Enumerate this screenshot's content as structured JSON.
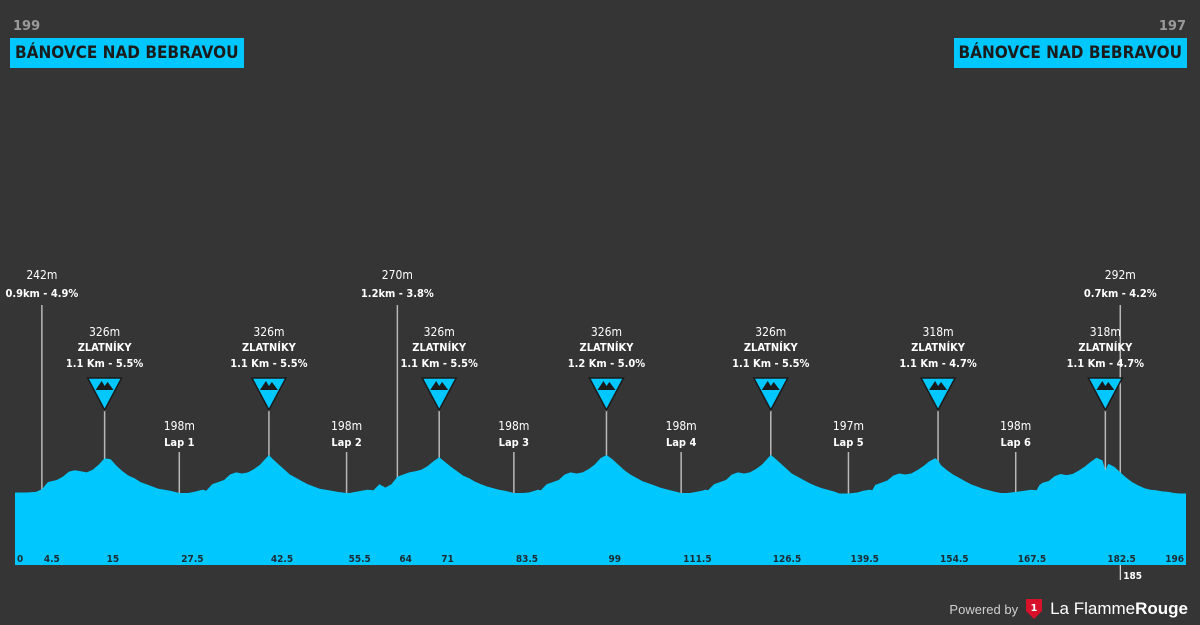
{
  "start": {
    "altitude": "199",
    "town": "BÁNOVCE NAD BEBRAVOU"
  },
  "finish": {
    "altitude": "197",
    "town": "BÁNOVCE NAD BEBRAVOU"
  },
  "footer": {
    "powered_by": "Powered by",
    "brand_part1": "La Flamme",
    "brand_part2": "Rouge"
  },
  "colors": {
    "profile_fill": "#00c8ff",
    "background": "#353535",
    "kom_badge": "#00c8ff",
    "line": "#b8b8b8",
    "brand_red": "#d8112a"
  },
  "chart_data": {
    "type": "area",
    "title": "",
    "xlabel": "",
    "ylabel": "",
    "x_unit": "km",
    "y_unit": "m",
    "xlim": [
      0,
      196
    ],
    "ylim": [
      0,
      330
    ],
    "x_ticks": [
      {
        "value": 0,
        "label": "0"
      },
      {
        "value": 4.5,
        "label": "4.5"
      },
      {
        "value": 15,
        "label": "15"
      },
      {
        "value": 27.5,
        "label": "27.5"
      },
      {
        "value": 42.5,
        "label": "42.5"
      },
      {
        "value": 55.5,
        "label": "55.5"
      },
      {
        "value": 64,
        "label": "64"
      },
      {
        "value": 71,
        "label": "71"
      },
      {
        "value": 83.5,
        "label": "83.5"
      },
      {
        "value": 99,
        "label": "99"
      },
      {
        "value": 111.5,
        "label": "111.5"
      },
      {
        "value": 126.5,
        "label": "126.5"
      },
      {
        "value": 139.5,
        "label": "139.5"
      },
      {
        "value": 154.5,
        "label": "154.5"
      },
      {
        "value": 167.5,
        "label": "167.5"
      },
      {
        "value": 182.5,
        "label": "182.5"
      },
      {
        "value": 185,
        "label": "185"
      },
      {
        "value": 196,
        "label": "196"
      }
    ],
    "profile": {
      "x": [
        0,
        2,
        3.5,
        4.5,
        5.5,
        7,
        8,
        9,
        10,
        11,
        12,
        13,
        14,
        15,
        16,
        17,
        18,
        19,
        20,
        21,
        22,
        23,
        24,
        25,
        26,
        27.5,
        29,
        30,
        31,
        31.5,
        32,
        33,
        34,
        35,
        36,
        37,
        38,
        39,
        40,
        41,
        42,
        42.5,
        43,
        44,
        45,
        46,
        47,
        48,
        49,
        50,
        51,
        52,
        53,
        54,
        55.5,
        56,
        57,
        58,
        59,
        60,
        61,
        62,
        63,
        64,
        65,
        66,
        67,
        68,
        69,
        70,
        71,
        72,
        73,
        74,
        75,
        76,
        77,
        78,
        79,
        80,
        81,
        82,
        83.5,
        85,
        86,
        87,
        87.5,
        88,
        89,
        90,
        91,
        92,
        93,
        94,
        95,
        96,
        97,
        98,
        99,
        100,
        101,
        102,
        103,
        104,
        105,
        106,
        107,
        108,
        109,
        110,
        111.5,
        113,
        114,
        115,
        115.5,
        116,
        117,
        118,
        119,
        120,
        121,
        122,
        123,
        124,
        125,
        126,
        126.5,
        127,
        128,
        129,
        130,
        131,
        132,
        133,
        134,
        135,
        136,
        137,
        138,
        139.5,
        141,
        142,
        143,
        143.5,
        144,
        145,
        146,
        147,
        148,
        149,
        150,
        151,
        152,
        153,
        154,
        154.5,
        155,
        156,
        157,
        158,
        159,
        160,
        161,
        162,
        163,
        164,
        165,
        166,
        167.5,
        169,
        170,
        171,
        171.5,
        172,
        173,
        174,
        175,
        176,
        177,
        178,
        179,
        180,
        181,
        182,
        182.5,
        183,
        184,
        185,
        186,
        187,
        188,
        189,
        190,
        191,
        192,
        193,
        194,
        195,
        196
      ],
      "y": [
        199,
        199,
        200,
        205,
        218,
        222,
        228,
        237,
        240,
        238,
        236,
        241,
        250,
        262,
        260,
        248,
        238,
        230,
        225,
        218,
        214,
        210,
        206,
        204,
        202,
        198,
        198,
        200,
        203,
        204,
        202,
        214,
        218,
        222,
        232,
        236,
        234,
        236,
        242,
        250,
        262,
        268,
        262,
        252,
        242,
        232,
        226,
        220,
        214,
        210,
        206,
        204,
        202,
        200,
        198,
        198,
        200,
        202,
        204,
        203,
        214,
        208,
        214,
        228,
        232,
        236,
        238,
        241,
        247,
        256,
        264,
        255,
        246,
        238,
        230,
        225,
        219,
        214,
        210,
        207,
        204,
        202,
        198,
        198,
        199,
        202,
        204,
        203,
        214,
        218,
        222,
        232,
        236,
        234,
        236,
        242,
        250,
        262,
        268,
        260,
        250,
        240,
        232,
        226,
        220,
        216,
        212,
        208,
        205,
        202,
        198,
        198,
        200,
        202,
        204,
        203,
        214,
        218,
        222,
        232,
        236,
        234,
        236,
        242,
        250,
        262,
        268,
        264,
        254,
        244,
        234,
        228,
        222,
        216,
        211,
        207,
        204,
        201,
        197,
        197,
        199,
        202,
        204,
        203,
        213,
        217,
        221,
        230,
        234,
        232,
        234,
        240,
        247,
        256,
        262,
        258,
        249,
        240,
        232,
        226,
        220,
        214,
        210,
        206,
        203,
        200,
        198,
        198,
        200,
        202,
        204,
        203,
        213,
        217,
        220,
        229,
        233,
        231,
        233,
        239,
        246,
        255,
        263,
        258,
        240,
        252,
        246,
        236,
        226,
        218,
        212,
        207,
        204,
        203,
        201,
        200,
        198,
        197,
        197
      ]
    },
    "annotations": [
      {
        "kind": "climb",
        "km": 4.5,
        "altitude": "242m",
        "detail": "0.9km - 4.9%",
        "level": "high"
      },
      {
        "kind": "kom",
        "km": 15,
        "altitude": "326m",
        "name": "ZLATNÍKY",
        "detail": "1.1 Km - 5.5%",
        "level": "mid"
      },
      {
        "kind": "lap",
        "km": 27.5,
        "altitude": "198m",
        "name": "Lap 1",
        "level": "low"
      },
      {
        "kind": "kom",
        "km": 42.5,
        "altitude": "326m",
        "name": "ZLATNÍKY",
        "detail": "1.1 Km - 5.5%",
        "level": "mid"
      },
      {
        "kind": "lap",
        "km": 55.5,
        "altitude": "198m",
        "name": "Lap 2",
        "level": "low"
      },
      {
        "kind": "climb",
        "km": 64,
        "altitude": "270m",
        "detail": "1.2km - 3.8%",
        "level": "high"
      },
      {
        "kind": "kom",
        "km": 71,
        "altitude": "326m",
        "name": "ZLATNÍKY",
        "detail": "1.1 Km - 5.5%",
        "level": "mid"
      },
      {
        "kind": "lap",
        "km": 83.5,
        "altitude": "198m",
        "name": "Lap 3",
        "level": "low"
      },
      {
        "kind": "kom",
        "km": 99,
        "altitude": "326m",
        "name": "ZLATNÍKY",
        "detail": "1.2 Km - 5.0%",
        "level": "mid"
      },
      {
        "kind": "lap",
        "km": 111.5,
        "altitude": "198m",
        "name": "Lap 4",
        "level": "low"
      },
      {
        "kind": "kom",
        "km": 126.5,
        "altitude": "326m",
        "name": "ZLATNÍKY",
        "detail": "1.1 Km - 5.5%",
        "level": "mid"
      },
      {
        "kind": "lap",
        "km": 139.5,
        "altitude": "197m",
        "name": "Lap 5",
        "level": "low"
      },
      {
        "kind": "kom",
        "km": 154.5,
        "altitude": "318m",
        "name": "ZLATNÍKY",
        "detail": "1.1 Km - 4.7%",
        "level": "mid"
      },
      {
        "kind": "lap",
        "km": 167.5,
        "altitude": "198m",
        "name": "Lap 6",
        "level": "low"
      },
      {
        "kind": "kom",
        "km": 182.5,
        "altitude": "318m",
        "name": "ZLATNÍKY",
        "detail": "1.1 Km - 4.7%",
        "level": "mid"
      },
      {
        "kind": "climb",
        "km": 185,
        "altitude": "292m",
        "detail": "0.7km - 4.2%",
        "level": "high"
      }
    ]
  }
}
